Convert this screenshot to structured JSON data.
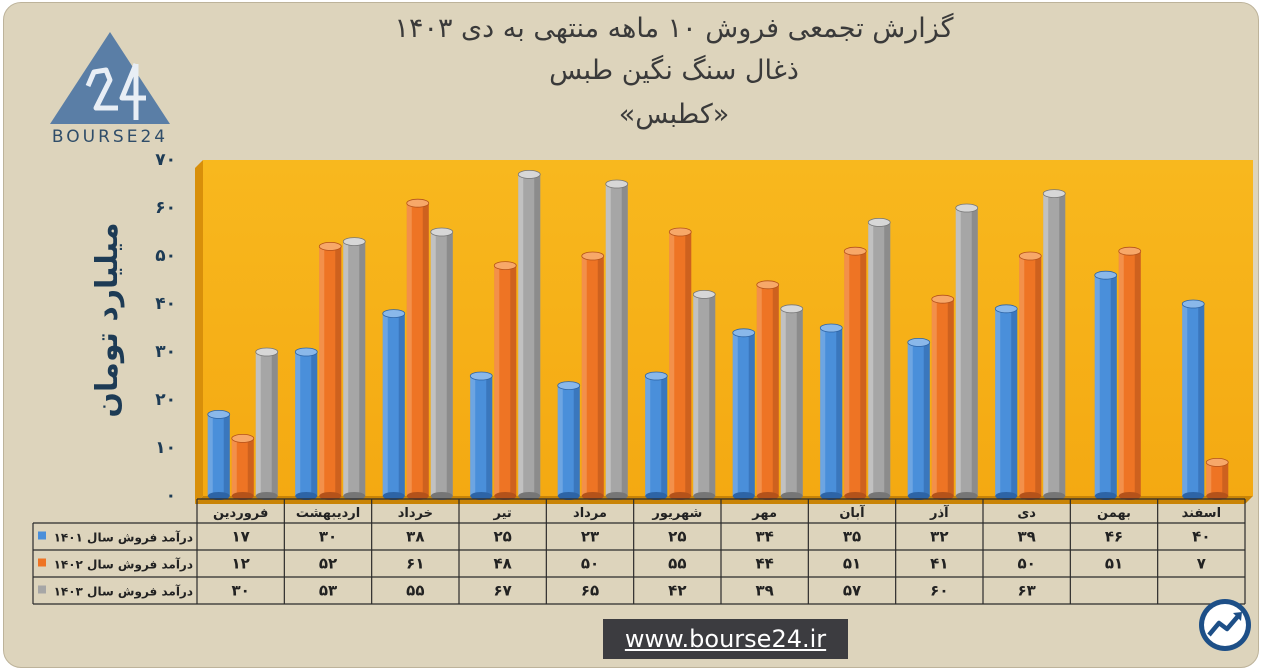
{
  "title": {
    "line1": "گزارش تجمعی فروش ۱۰ ماهه منتهی به دی ۱۴۰۳",
    "line2": "ذغال سنگ نگین طبس",
    "line3": "«کطبس»"
  },
  "logo": {
    "text": "BOURSE24",
    "mark": "24"
  },
  "website": "www.bourse24.ir",
  "colors": {
    "background": "#ddd4bc",
    "plot_area": "#f7b51b",
    "series_1401": "#4a8fda",
    "series_1402": "#ee7424",
    "series_1403": "#a6a6a6",
    "title_text": "#3a3a3a",
    "axis_text": "#1d3b55"
  },
  "icons": {
    "brand": "trend-arrow-circle-icon"
  },
  "chart_data": {
    "type": "bar",
    "ylabel": "میلیارد تومان",
    "ylim": [
      0,
      70
    ],
    "yticks": [
      "۰",
      "۱۰",
      "۲۰",
      "۳۰",
      "۴۰",
      "۵۰",
      "۶۰",
      "۷۰"
    ],
    "grid": false,
    "legend": "table-left",
    "categories": [
      "فروردین",
      "اردیبهشت",
      "خرداد",
      "تیر",
      "مرداد",
      "شهریور",
      "مهر",
      "آبان",
      "آذر",
      "دی",
      "بهمن",
      "اسفند"
    ],
    "series": [
      {
        "name": "درآمد فروش سال ۱۴۰۱",
        "values": [
          17,
          30,
          38,
          25,
          23,
          25,
          34,
          35,
          32,
          39,
          46,
          40
        ],
        "labels": [
          "۱۷",
          "۳۰",
          "۳۸",
          "۲۵",
          "۲۳",
          "۲۵",
          "۳۴",
          "۳۵",
          "۳۲",
          "۳۹",
          "۴۶",
          "۴۰"
        ]
      },
      {
        "name": "درآمد فروش سال ۱۴۰۲",
        "values": [
          12,
          52,
          61,
          48,
          50,
          55,
          44,
          51,
          41,
          50,
          51,
          7
        ],
        "labels": [
          "۱۲",
          "۵۲",
          "۶۱",
          "۴۸",
          "۵۰",
          "۵۵",
          "۴۴",
          "۵۱",
          "۴۱",
          "۵۰",
          "۵۱",
          "۷"
        ]
      },
      {
        "name": "درآمد فروش سال ۱۴۰۳",
        "values": [
          30,
          53,
          55,
          67,
          65,
          42,
          39,
          57,
          60,
          63,
          null,
          null
        ],
        "labels": [
          "۳۰",
          "۵۳",
          "۵۵",
          "۶۷",
          "۶۵",
          "۴۲",
          "۳۹",
          "۵۷",
          "۶۰",
          "۶۳",
          "",
          ""
        ]
      }
    ]
  }
}
